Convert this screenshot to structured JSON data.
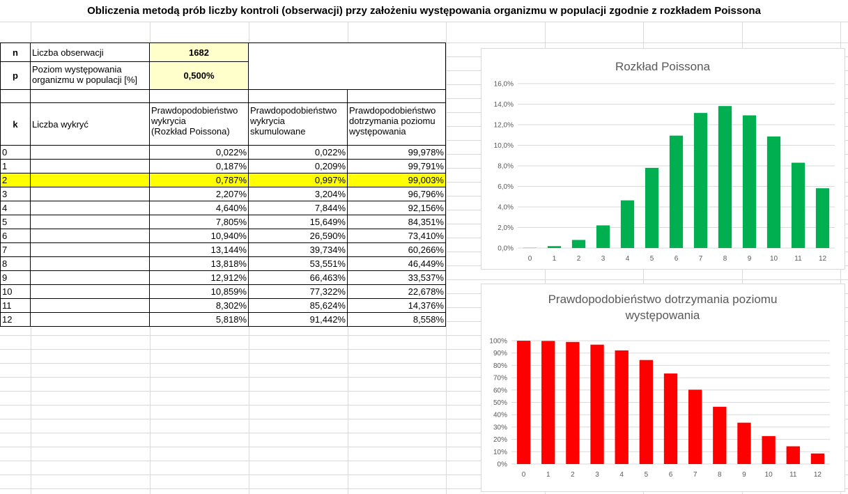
{
  "title": "Obliczenia metodą prób liczby kontroli (obserwacji) przy założeniu występowania organizmu w populacji zgodnie z rozkładem Poissona",
  "params": {
    "n_label": "n",
    "n_desc": "Liczba obserwacji",
    "n_value": "1682",
    "p_label": "p",
    "p_desc_line1": "Poziom występowania",
    "p_desc_line2": "organizmu w populacji [%]",
    "p_value": "0,500%"
  },
  "headers": {
    "k": "k",
    "detections": "Liczba wykryć",
    "prob_line1": "Prawdopodobieństwo",
    "prob_line2": "wykrycia",
    "prob_line3": "(Rozkład Poissona)",
    "cum_line1": "Prawdopodobieństwo",
    "cum_line2": "wykrycia",
    "cum_line3": "skumulowane",
    "keep_line1": "Prawdopodobieństwo",
    "keep_line2": "dotrzymania poziomu",
    "keep_line3": "występowania"
  },
  "highlight_row": 2,
  "rows": [
    {
      "k": "0",
      "prob": "0,022%",
      "cum": "0,022%",
      "keep": "99,978%"
    },
    {
      "k": "1",
      "prob": "0,187%",
      "cum": "0,209%",
      "keep": "99,791%"
    },
    {
      "k": "2",
      "prob": "0,787%",
      "cum": "0,997%",
      "keep": "99,003%"
    },
    {
      "k": "3",
      "prob": "2,207%",
      "cum": "3,204%",
      "keep": "96,796%"
    },
    {
      "k": "4",
      "prob": "4,640%",
      "cum": "7,844%",
      "keep": "92,156%"
    },
    {
      "k": "5",
      "prob": "7,805%",
      "cum": "15,649%",
      "keep": "84,351%"
    },
    {
      "k": "6",
      "prob": "10,940%",
      "cum": "26,590%",
      "keep": "73,410%"
    },
    {
      "k": "7",
      "prob": "13,144%",
      "cum": "39,734%",
      "keep": "60,266%"
    },
    {
      "k": "8",
      "prob": "13,818%",
      "cum": "53,551%",
      "keep": "46,449%"
    },
    {
      "k": "9",
      "prob": "12,912%",
      "cum": "66,463%",
      "keep": "33,537%"
    },
    {
      "k": "10",
      "prob": "10,859%",
      "cum": "77,322%",
      "keep": "22,678%"
    },
    {
      "k": "11",
      "prob": "8,302%",
      "cum": "85,624%",
      "keep": "14,376%"
    },
    {
      "k": "12",
      "prob": "5,818%",
      "cum": "91,442%",
      "keep": "8,558%"
    }
  ],
  "chart_data": [
    {
      "type": "bar",
      "title": "Rozkład Poissona",
      "categories": [
        "0",
        "1",
        "2",
        "3",
        "4",
        "5",
        "6",
        "7",
        "8",
        "9",
        "10",
        "11",
        "12"
      ],
      "values": [
        0.022,
        0.187,
        0.787,
        2.207,
        4.64,
        7.805,
        10.94,
        13.144,
        13.818,
        12.912,
        10.859,
        8.302,
        5.818
      ],
      "ylim": [
        0,
        16
      ],
      "yticks": [
        "0,0%",
        "2,0%",
        "4,0%",
        "6,0%",
        "8,0%",
        "10,0%",
        "12,0%",
        "14,0%",
        "16,0%"
      ],
      "color": "#00b050",
      "grid": true
    },
    {
      "type": "bar",
      "title_line1": "Prawdopodobieństwo dotrzymania poziomu",
      "title_line2": "występowania",
      "categories": [
        "0",
        "1",
        "2",
        "3",
        "4",
        "5",
        "6",
        "7",
        "8",
        "9",
        "10",
        "11",
        "12"
      ],
      "values": [
        99.978,
        99.791,
        99.003,
        96.796,
        92.156,
        84.351,
        73.41,
        60.266,
        46.449,
        33.537,
        22.678,
        14.376,
        8.558
      ],
      "ylim": [
        0,
        100
      ],
      "yticks": [
        "0%",
        "10%",
        "20%",
        "30%",
        "40%",
        "50%",
        "60%",
        "70%",
        "80%",
        "90%",
        "100%"
      ],
      "color": "#ff0000",
      "grid": true
    }
  ]
}
